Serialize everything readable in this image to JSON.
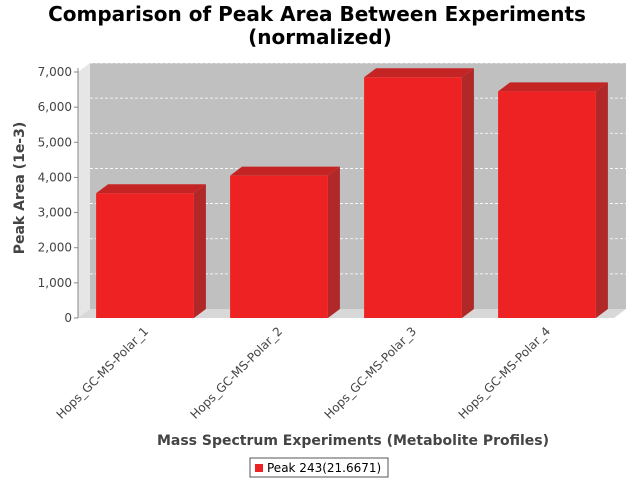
{
  "chart_data": {
    "type": "bar",
    "title_lines": [
      "Comparison of Peak Area Between Experiments",
      "(normalized)"
    ],
    "xlabel": "Mass Spectrum Experiments (Metabolite Profiles)",
    "ylabel": "Peak Area (1e-3)",
    "categories": [
      "Hops_GC-MS-Polar_1",
      "Hops_GC-MS-Polar_2",
      "Hops_GC-MS-Polar_3",
      "Hops_GC-MS-Polar_4"
    ],
    "series": [
      {
        "name": "Peak 243(21.6671)",
        "values": [
          3550,
          4050,
          6850,
          6450
        ]
      }
    ],
    "ylim": [
      0,
      7000
    ],
    "yticks": [
      0,
      1000,
      2000,
      3000,
      4000,
      5000,
      6000,
      7000
    ],
    "ytick_labels": [
      "0",
      "1,000",
      "2,000",
      "3,000",
      "4,000",
      "5,000",
      "6,000",
      "7,000"
    ],
    "grid": true,
    "legend": "bottom-center",
    "bar_color": "#ee2222",
    "plot_bg": "#c0c0c0"
  }
}
